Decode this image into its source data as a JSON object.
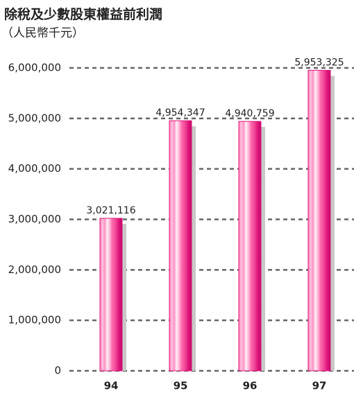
{
  "chart_data": {
    "type": "bar",
    "title": "除稅及少數股東權益前利潤",
    "subtitle": "（人民幣千元）",
    "categories": [
      "94",
      "95",
      "96",
      "97"
    ],
    "values": [
      3021116,
      4954347,
      4940759,
      5953325
    ],
    "value_labels": [
      "3,021,116",
      "4,954,347",
      "4,940,759",
      "5,953,325"
    ],
    "color": "#e0157a",
    "ylim": [
      0,
      6000000
    ],
    "yticks": [
      0,
      {
        "value": 1000000,
        "label": "1,000,000"
      },
      {
        "value": 2000000,
        "label": "2,000,000"
      },
      {
        "value": 3000000,
        "label": "3,000,000"
      },
      {
        "value": 4000000,
        "label": "4,000,000"
      },
      {
        "value": 5000000,
        "label": "5,000,000"
      },
      {
        "value": 6000000,
        "label": "6,000,000"
      }
    ],
    "grid": true
  }
}
